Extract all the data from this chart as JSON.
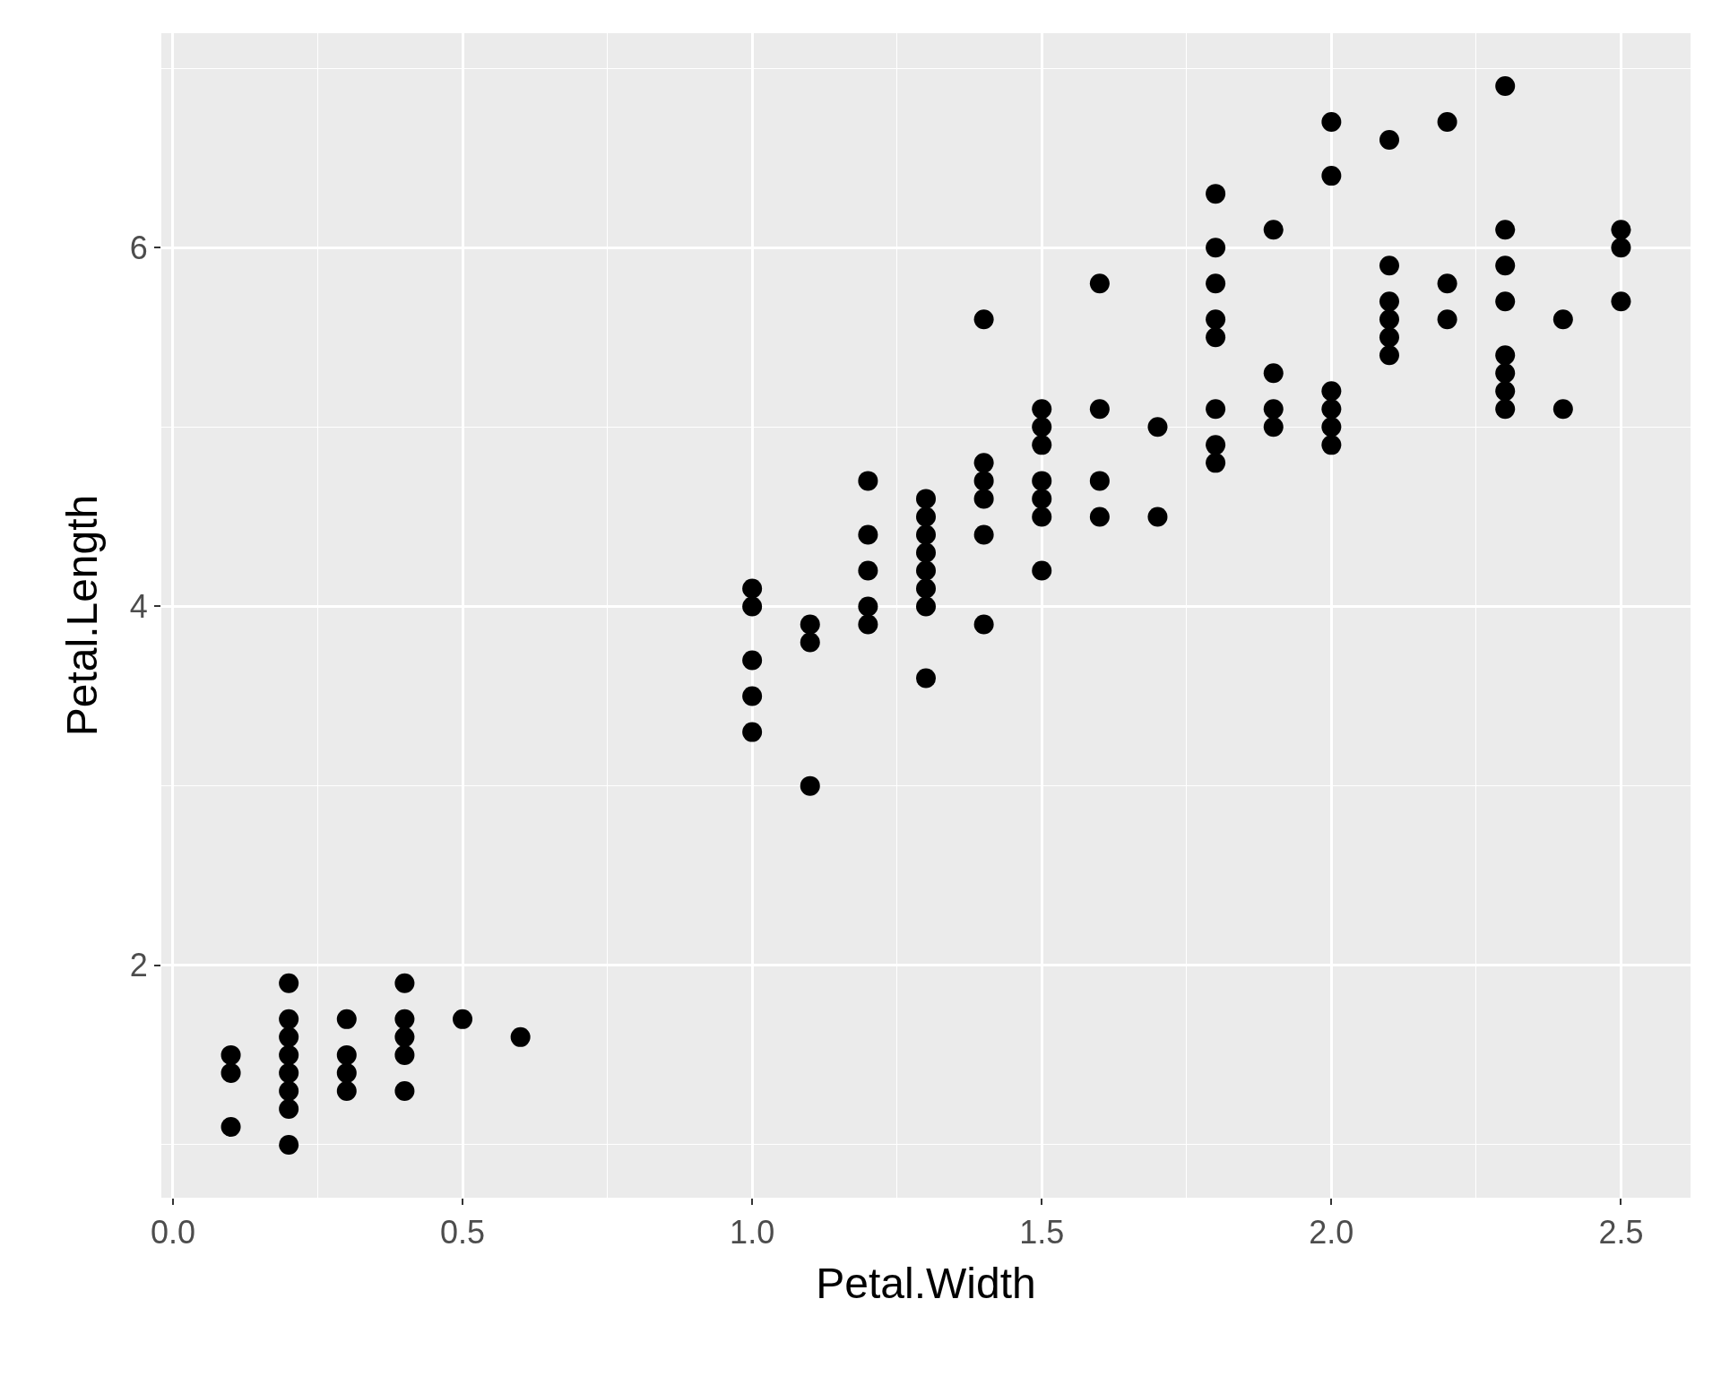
{
  "chart_data": {
    "type": "scatter",
    "xlabel": "Petal.Width",
    "ylabel": "Petal.Length",
    "x": [
      0.1,
      0.1,
      0.1,
      0.2,
      0.2,
      0.2,
      0.2,
      0.2,
      0.2,
      0.2,
      0.2,
      0.3,
      0.3,
      0.3,
      0.3,
      0.4,
      0.4,
      0.4,
      0.4,
      0.4,
      0.5,
      0.6,
      1.0,
      1.0,
      1.0,
      1.0,
      1.0,
      1.1,
      1.1,
      1.1,
      1.2,
      1.2,
      1.2,
      1.2,
      1.2,
      1.3,
      1.3,
      1.3,
      1.3,
      1.3,
      1.3,
      1.3,
      1.3,
      1.4,
      1.4,
      1.4,
      1.4,
      1.4,
      1.4,
      1.5,
      1.5,
      1.5,
      1.5,
      1.5,
      1.5,
      1.5,
      1.6,
      1.6,
      1.6,
      1.6,
      1.7,
      1.7,
      1.8,
      1.8,
      1.8,
      1.8,
      1.8,
      1.8,
      1.8,
      1.8,
      1.9,
      1.9,
      1.9,
      1.9,
      2.0,
      2.0,
      2.0,
      2.0,
      2.0,
      2.0,
      2.1,
      2.1,
      2.1,
      2.1,
      2.1,
      2.1,
      2.2,
      2.2,
      2.2,
      2.3,
      2.3,
      2.3,
      2.3,
      2.3,
      2.3,
      2.3,
      2.3,
      2.4,
      2.4,
      2.5,
      2.5,
      2.5
    ],
    "values": [
      1.5,
      1.4,
      1.1,
      1.4,
      1.3,
      1.5,
      1.6,
      1.2,
      1.7,
      1.0,
      1.9,
      1.4,
      1.7,
      1.5,
      1.3,
      1.7,
      1.5,
      1.3,
      1.6,
      1.9,
      1.7,
      1.6,
      3.3,
      3.5,
      4.0,
      4.1,
      3.7,
      3.9,
      3.8,
      3.0,
      4.7,
      3.9,
      4.4,
      4.0,
      4.2,
      4.0,
      4.5,
      4.6,
      3.6,
      4.3,
      4.4,
      4.1,
      4.2,
      4.7,
      3.9,
      4.4,
      4.8,
      4.6,
      5.6,
      4.5,
      4.9,
      4.6,
      4.2,
      4.7,
      5.0,
      5.1,
      4.7,
      5.1,
      4.5,
      5.8,
      5.0,
      4.5,
      4.8,
      5.6,
      6.3,
      5.8,
      5.5,
      4.9,
      6.0,
      5.1,
      5.1,
      5.3,
      6.1,
      5.0,
      5.1,
      5.0,
      4.9,
      6.7,
      6.4,
      5.2,
      5.9,
      6.6,
      5.5,
      5.7,
      5.6,
      5.4,
      5.8,
      6.7,
      5.6,
      5.3,
      6.9,
      5.7,
      6.1,
      5.1,
      5.9,
      5.2,
      5.4,
      5.1,
      5.6,
      6.0,
      6.1,
      5.7
    ],
    "color": "#000000",
    "marker": "circle",
    "xlim": [
      -0.02,
      2.62
    ],
    "ylim": [
      0.705,
      7.195
    ],
    "xticks": [
      {
        "value": 0,
        "label": "0.0"
      },
      {
        "value": 0.5,
        "label": "0.5"
      },
      {
        "value": 1,
        "label": "1.0"
      },
      {
        "value": 1.5,
        "label": "1.5"
      },
      {
        "value": 2,
        "label": "2.0"
      },
      {
        "value": 2.5,
        "label": "2.5"
      }
    ],
    "yticks": [
      2,
      4,
      6
    ],
    "grid": true
  }
}
